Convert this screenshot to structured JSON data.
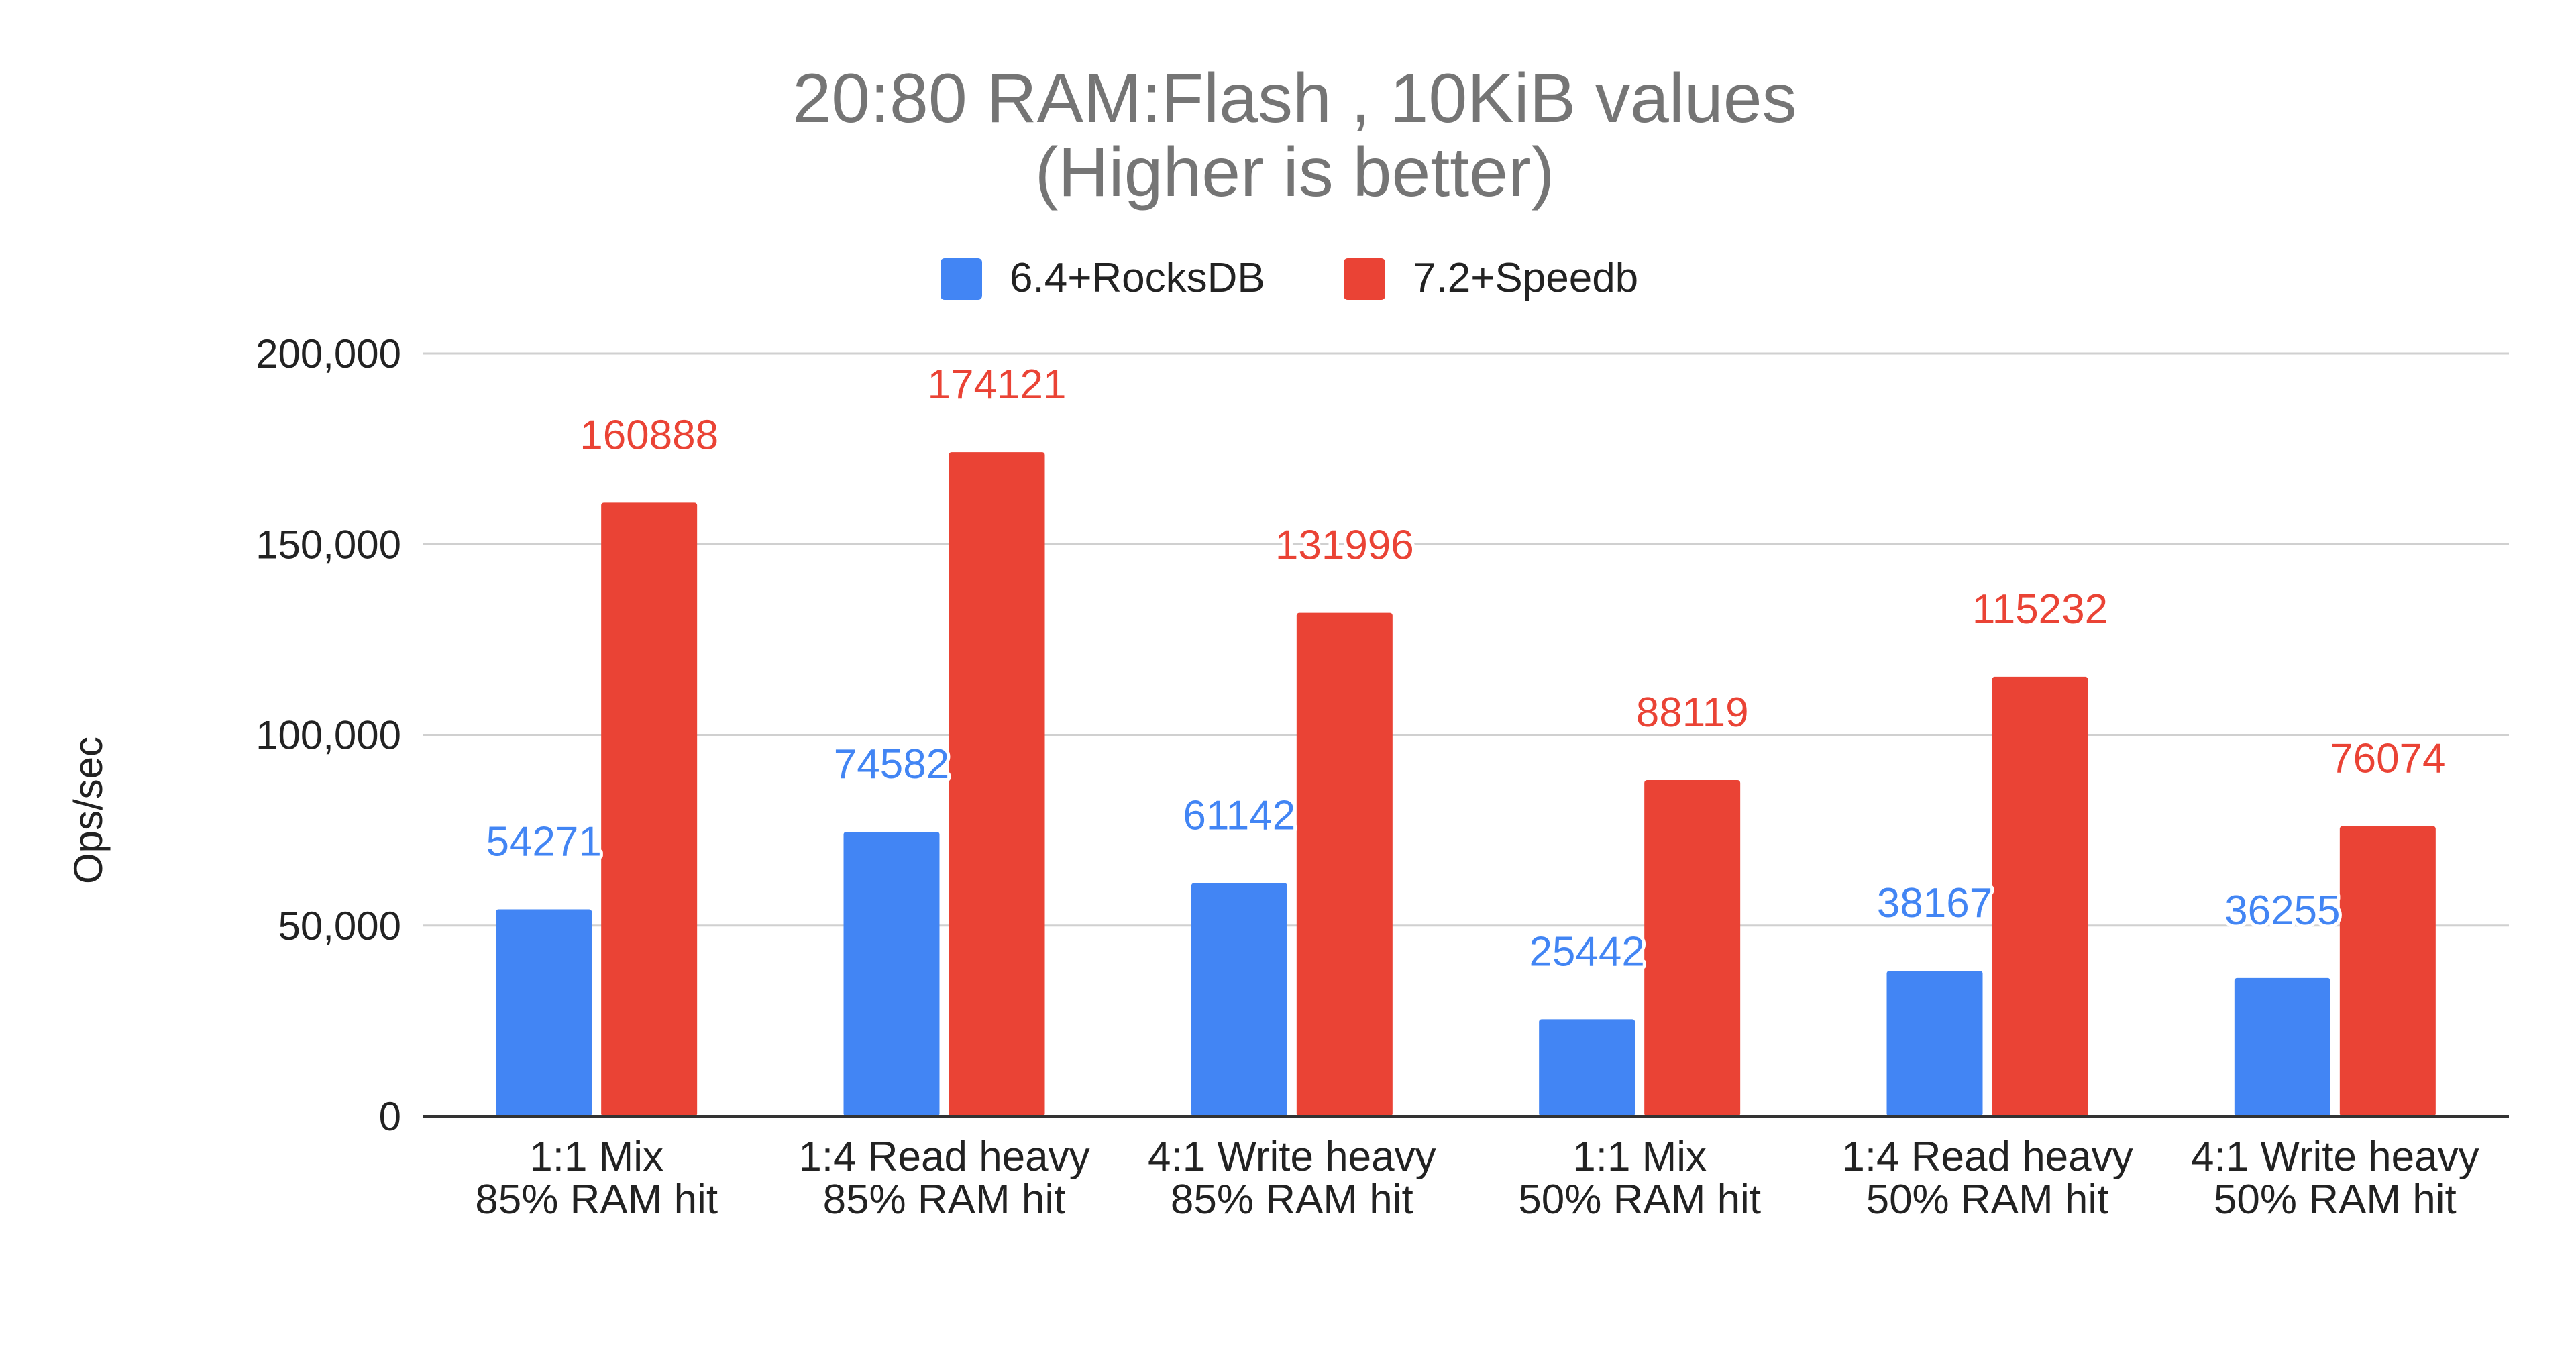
{
  "chart_data": {
    "type": "bar",
    "title": "20:80 RAM:Flash , 10KiB values",
    "subtitle": "(Higher is better)",
    "xlabel": "",
    "ylabel": "Ops/sec",
    "ylim": [
      0,
      200000
    ],
    "yticks": [
      0,
      50000,
      100000,
      150000,
      200000
    ],
    "ytick_labels": [
      "0",
      "50,000",
      "100,000",
      "150,000",
      "200,000"
    ],
    "grid": true,
    "legend_position": "top-center",
    "categories": [
      [
        "1:1 Mix",
        "85% RAM hit"
      ],
      [
        "1:4 Read heavy",
        "85% RAM hit"
      ],
      [
        "4:1 Write heavy",
        "85% RAM hit"
      ],
      [
        "1:1 Mix",
        "50% RAM hit"
      ],
      [
        "1:4 Read heavy",
        "50% RAM hit"
      ],
      [
        "4:1 Write heavy",
        "50% RAM hit"
      ]
    ],
    "series": [
      {
        "name": "6.4+RocksDB",
        "color": "#4285f4",
        "label_color": "#4285f4",
        "values": [
          54271,
          74582,
          61142,
          25442,
          38167,
          36255
        ]
      },
      {
        "name": "7.2+Speedb",
        "color": "#ea4335",
        "label_color": "#ea4335",
        "values": [
          160888,
          174121,
          131996,
          88119,
          115232,
          76074
        ]
      }
    ]
  }
}
